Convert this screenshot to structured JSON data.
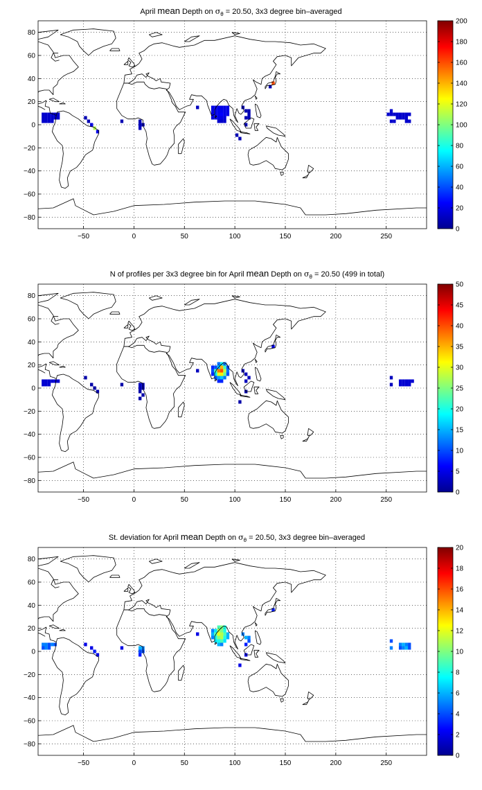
{
  "chart_data": [
    {
      "type": "heatmap",
      "title": {
        "pre": "April ",
        "mean": "mean",
        "mid": " Depth on ",
        "sigma": "σ",
        "sub": "θ",
        "post": " = 20.50, 3x3 degree bin–averaged"
      },
      "xlim": [
        -95,
        290
      ],
      "ylim": [
        -90,
        90
      ],
      "xticks": [
        -50,
        0,
        50,
        100,
        150,
        200,
        250
      ],
      "xtick_labels": [
        "−50",
        "0",
        "50",
        "100",
        "150",
        "200",
        "250"
      ],
      "yticks": [
        80,
        60,
        40,
        20,
        0,
        -20,
        -40,
        -60,
        -80
      ],
      "ytick_labels": [
        "80",
        "60",
        "40",
        "20",
        "0",
        "−20",
        "−40",
        "−60",
        "−80"
      ],
      "grid": true,
      "colorbar": {
        "min": 0,
        "max": 200,
        "ticks": [
          0,
          20,
          40,
          60,
          80,
          100,
          120,
          140,
          160,
          180,
          200
        ],
        "tick_labels": [
          "0",
          "20",
          "40",
          "60",
          "80",
          "100",
          "120",
          "140",
          "160",
          "180",
          "200"
        ]
      },
      "cells": [
        [
          -90,
          9,
          15
        ],
        [
          -87,
          9,
          15
        ],
        [
          -84,
          9,
          15
        ],
        [
          -81,
          9,
          15
        ],
        [
          -78,
          9,
          15
        ],
        [
          -75,
          9,
          15
        ],
        [
          -90,
          6,
          15
        ],
        [
          -87,
          6,
          15
        ],
        [
          -84,
          6,
          15
        ],
        [
          -81,
          6,
          15
        ],
        [
          -78,
          6,
          15
        ],
        [
          -75,
          6,
          15
        ],
        [
          -90,
          3,
          15
        ],
        [
          -87,
          3,
          15
        ],
        [
          -84,
          3,
          15
        ],
        [
          -81,
          3,
          15
        ],
        [
          -48,
          6,
          10
        ],
        [
          -45,
          3,
          10
        ],
        [
          -42,
          0,
          20
        ],
        [
          -39,
          -3,
          110
        ],
        [
          -36,
          -6,
          20
        ],
        [
          -12,
          3,
          10
        ],
        [
          6,
          3,
          10
        ],
        [
          6,
          0,
          12
        ],
        [
          9,
          0,
          12
        ],
        [
          6,
          -3,
          12
        ],
        [
          63,
          15,
          12
        ],
        [
          78,
          15,
          20
        ],
        [
          81,
          15,
          20
        ],
        [
          84,
          15,
          20
        ],
        [
          87,
          15,
          20
        ],
        [
          90,
          15,
          20
        ],
        [
          93,
          15,
          20
        ],
        [
          78,
          12,
          20
        ],
        [
          81,
          12,
          20
        ],
        [
          84,
          12,
          22
        ],
        [
          87,
          12,
          22
        ],
        [
          90,
          12,
          20
        ],
        [
          93,
          12,
          20
        ],
        [
          78,
          9,
          20
        ],
        [
          81,
          9,
          20
        ],
        [
          84,
          9,
          22
        ],
        [
          87,
          9,
          25
        ],
        [
          90,
          9,
          20
        ],
        [
          93,
          9,
          20
        ],
        [
          78,
          6,
          18
        ],
        [
          81,
          6,
          18
        ],
        [
          84,
          6,
          20
        ],
        [
          87,
          6,
          20
        ],
        [
          90,
          6,
          18
        ],
        [
          84,
          3,
          15
        ],
        [
          87,
          3,
          15
        ],
        [
          90,
          3,
          15
        ],
        [
          108,
          15,
          10
        ],
        [
          111,
          12,
          10
        ],
        [
          114,
          12,
          10
        ],
        [
          114,
          9,
          10
        ],
        [
          111,
          6,
          10
        ],
        [
          114,
          6,
          12
        ],
        [
          102,
          -9,
          10
        ],
        [
          105,
          -12,
          10
        ],
        [
          111,
          0,
          10
        ],
        [
          135,
          33,
          10
        ],
        [
          138,
          36,
          160
        ],
        [
          255,
          12,
          15
        ],
        [
          252,
          9,
          15
        ],
        [
          255,
          9,
          15
        ],
        [
          258,
          9,
          15
        ],
        [
          261,
          9,
          15
        ],
        [
          264,
          9,
          15
        ],
        [
          267,
          9,
          15
        ],
        [
          270,
          9,
          15
        ],
        [
          273,
          9,
          15
        ],
        [
          261,
          6,
          15
        ],
        [
          264,
          6,
          15
        ],
        [
          267,
          6,
          15
        ],
        [
          270,
          6,
          15
        ],
        [
          255,
          3,
          15
        ],
        [
          258,
          3,
          15
        ],
        [
          270,
          3,
          15
        ],
        [
          273,
          3,
          15
        ]
      ]
    },
    {
      "type": "heatmap",
      "title": {
        "pre": "N of profiles per 3x3 degree bin for April ",
        "mean": "mean",
        "mid": " Depth on ",
        "sigma": "σ",
        "sub": "θ",
        "post": " = 20.50 (499 in total)"
      },
      "xlim": [
        -95,
        290
      ],
      "ylim": [
        -90,
        90
      ],
      "xticks": [
        -50,
        0,
        50,
        100,
        150,
        200,
        250
      ],
      "xtick_labels": [
        "−50",
        "0",
        "50",
        "100",
        "150",
        "200",
        "250"
      ],
      "yticks": [
        80,
        60,
        40,
        20,
        0,
        -20,
        -40,
        -60,
        -80
      ],
      "ytick_labels": [
        "80",
        "60",
        "40",
        "20",
        "0",
        "−20",
        "−40",
        "−60",
        "−80"
      ],
      "grid": true,
      "colorbar": {
        "min": 0,
        "max": 50,
        "ticks": [
          0,
          5,
          10,
          15,
          20,
          25,
          30,
          35,
          40,
          45,
          50
        ],
        "tick_labels": [
          "0",
          "5",
          "10",
          "15",
          "20",
          "25",
          "30",
          "35",
          "40",
          "45",
          "50"
        ]
      },
      "cells": [
        [
          -90,
          6,
          4
        ],
        [
          -87,
          6,
          4
        ],
        [
          -84,
          6,
          4
        ],
        [
          -81,
          6,
          4
        ],
        [
          -78,
          6,
          4
        ],
        [
          -75,
          6,
          4
        ],
        [
          -90,
          3,
          4
        ],
        [
          -87,
          3,
          4
        ],
        [
          -84,
          3,
          4
        ],
        [
          -48,
          9,
          2
        ],
        [
          -42,
          3,
          2
        ],
        [
          -39,
          0,
          2
        ],
        [
          -36,
          -3,
          2
        ],
        [
          -12,
          3,
          2
        ],
        [
          6,
          3,
          3
        ],
        [
          9,
          3,
          3
        ],
        [
          6,
          0,
          3
        ],
        [
          9,
          0,
          3
        ],
        [
          6,
          -3,
          2
        ],
        [
          9,
          -6,
          2
        ],
        [
          6,
          -9,
          2
        ],
        [
          63,
          15,
          3
        ],
        [
          84,
          21,
          12
        ],
        [
          87,
          21,
          18
        ],
        [
          90,
          21,
          12
        ],
        [
          78,
          18,
          8
        ],
        [
          81,
          18,
          10
        ],
        [
          84,
          18,
          16
        ],
        [
          87,
          18,
          35
        ],
        [
          90,
          18,
          22
        ],
        [
          93,
          18,
          10
        ],
        [
          78,
          15,
          10
        ],
        [
          81,
          15,
          22
        ],
        [
          84,
          15,
          38
        ],
        [
          87,
          15,
          40
        ],
        [
          90,
          15,
          28
        ],
        [
          93,
          15,
          12
        ],
        [
          78,
          12,
          8
        ],
        [
          81,
          12,
          18
        ],
        [
          84,
          12,
          30
        ],
        [
          87,
          12,
          32
        ],
        [
          90,
          12,
          24
        ],
        [
          93,
          12,
          10
        ],
        [
          81,
          9,
          10
        ],
        [
          84,
          9,
          14
        ],
        [
          87,
          9,
          16
        ],
        [
          90,
          9,
          12
        ],
        [
          84,
          6,
          8
        ],
        [
          87,
          6,
          8
        ],
        [
          108,
          15,
          3
        ],
        [
          111,
          12,
          3
        ],
        [
          114,
          9,
          3
        ],
        [
          111,
          6,
          3
        ],
        [
          105,
          -12,
          2
        ],
        [
          111,
          -3,
          2
        ],
        [
          138,
          36,
          5
        ],
        [
          255,
          9,
          3
        ],
        [
          264,
          6,
          4
        ],
        [
          267,
          6,
          4
        ],
        [
          270,
          6,
          4
        ],
        [
          273,
          6,
          4
        ],
        [
          276,
          6,
          4
        ],
        [
          255,
          3,
          3
        ],
        [
          264,
          3,
          4
        ],
        [
          267,
          3,
          4
        ],
        [
          270,
          3,
          4
        ],
        [
          273,
          3,
          4
        ]
      ]
    },
    {
      "type": "heatmap",
      "title": {
        "pre": "St. deviation for April ",
        "mean": "mean",
        "mid": " Depth on ",
        "sigma": "σ",
        "sub": "θ",
        "post": " = 20.50, 3x3 degree bin–averaged"
      },
      "xlim": [
        -95,
        290
      ],
      "ylim": [
        -90,
        90
      ],
      "xticks": [
        -50,
        0,
        50,
        100,
        150,
        200,
        250
      ],
      "xtick_labels": [
        "−50",
        "0",
        "50",
        "100",
        "150",
        "200",
        "250"
      ],
      "yticks": [
        80,
        60,
        40,
        20,
        0,
        -20,
        -40,
        -60,
        -80
      ],
      "ytick_labels": [
        "80",
        "60",
        "40",
        "20",
        "0",
        "−20",
        "−40",
        "−60",
        "−80"
      ],
      "grid": true,
      "colorbar": {
        "min": 0,
        "max": 20,
        "ticks": [
          0,
          2,
          4,
          6,
          8,
          10,
          12,
          14,
          16,
          18,
          20
        ],
        "tick_labels": [
          "0",
          "2",
          "4",
          "6",
          "8",
          "10",
          "12",
          "14",
          "16",
          "18",
          "20"
        ]
      },
      "cells": [
        [
          -90,
          6,
          5
        ],
        [
          -87,
          6,
          5
        ],
        [
          -84,
          6,
          4
        ],
        [
          -81,
          6,
          5
        ],
        [
          -78,
          6,
          4
        ],
        [
          -90,
          3,
          4
        ],
        [
          -87,
          3,
          5
        ],
        [
          -84,
          3,
          4
        ],
        [
          -48,
          6,
          2
        ],
        [
          -42,
          3,
          2
        ],
        [
          -39,
          0,
          3
        ],
        [
          -36,
          -3,
          2
        ],
        [
          -12,
          3,
          2
        ],
        [
          6,
          3,
          6
        ],
        [
          9,
          3,
          5
        ],
        [
          6,
          0,
          4
        ],
        [
          9,
          0,
          4
        ],
        [
          6,
          -3,
          3
        ],
        [
          63,
          15,
          2
        ],
        [
          84,
          21,
          9
        ],
        [
          87,
          21,
          10
        ],
        [
          90,
          21,
          8
        ],
        [
          78,
          18,
          5
        ],
        [
          81,
          18,
          7
        ],
        [
          84,
          18,
          11
        ],
        [
          87,
          18,
          10
        ],
        [
          90,
          18,
          8
        ],
        [
          78,
          15,
          6
        ],
        [
          81,
          15,
          9
        ],
        [
          84,
          15,
          12
        ],
        [
          87,
          15,
          11
        ],
        [
          90,
          15,
          9
        ],
        [
          93,
          15,
          6
        ],
        [
          78,
          12,
          5
        ],
        [
          81,
          12,
          8
        ],
        [
          84,
          12,
          10
        ],
        [
          87,
          12,
          11
        ],
        [
          90,
          12,
          8
        ],
        [
          93,
          12,
          6
        ],
        [
          81,
          9,
          7
        ],
        [
          84,
          9,
          8
        ],
        [
          87,
          9,
          9
        ],
        [
          90,
          9,
          7
        ],
        [
          84,
          6,
          6
        ],
        [
          87,
          6,
          5
        ],
        [
          108,
          15,
          5
        ],
        [
          111,
          12,
          6
        ],
        [
          114,
          12,
          5
        ],
        [
          114,
          9,
          4
        ],
        [
          111,
          6,
          3
        ],
        [
          105,
          -12,
          2
        ],
        [
          111,
          -3,
          2
        ],
        [
          138,
          36,
          3
        ],
        [
          255,
          9,
          4
        ],
        [
          264,
          6,
          5
        ],
        [
          267,
          6,
          6
        ],
        [
          270,
          6,
          5
        ],
        [
          273,
          6,
          4
        ],
        [
          255,
          3,
          5
        ],
        [
          264,
          3,
          4
        ],
        [
          267,
          3,
          5
        ],
        [
          270,
          3,
          6
        ],
        [
          273,
          3,
          4
        ]
      ]
    }
  ]
}
